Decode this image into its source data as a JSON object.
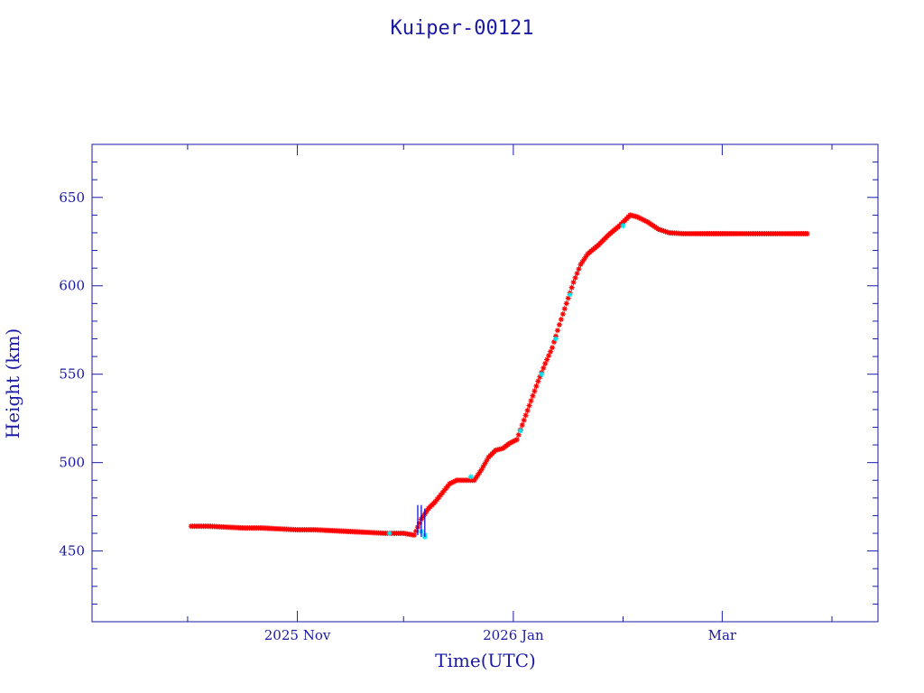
{
  "chart_data": {
    "type": "scatter",
    "title": "Kuiper-00121",
    "xlabel": "Time(UTC)",
    "ylabel": "Height (km)",
    "x_ticks": [
      {
        "date": "2025-11-01",
        "label": "2025 Nov"
      },
      {
        "date": "2026-01-01",
        "label": "2026 Jan"
      },
      {
        "date": "2026-03-01",
        "label": "Mar"
      }
    ],
    "x_minor_ticks": [
      "2025-10-01",
      "2025-12-01",
      "2026-02-01",
      "2026-04-01"
    ],
    "xlim": [
      "2025-09-04",
      "2026-04-14"
    ],
    "ylim": [
      410,
      680
    ],
    "y_ticks": [
      450,
      500,
      550,
      600,
      650
    ],
    "grid": false,
    "colors": {
      "frame": "#1a1aa6",
      "main_series": "#ff0000",
      "secondary_series": "#00e5ee",
      "spike_lines": "#0000cc"
    },
    "series": [
      {
        "color": "#ff0000",
        "marker": "asterisk",
        "points": [
          [
            "2025-10-02",
            464
          ],
          [
            "2025-10-07",
            464
          ],
          [
            "2025-10-12",
            463.5
          ],
          [
            "2025-10-17",
            463
          ],
          [
            "2025-10-22",
            463
          ],
          [
            "2025-10-27",
            462.5
          ],
          [
            "2025-11-01",
            462
          ],
          [
            "2025-11-06",
            462
          ],
          [
            "2025-11-11",
            461.5
          ],
          [
            "2025-11-16",
            461
          ],
          [
            "2025-11-21",
            460.5
          ],
          [
            "2025-11-26",
            460
          ],
          [
            "2025-12-01",
            460
          ],
          [
            "2025-12-04",
            459
          ],
          [
            "2025-12-06",
            468
          ],
          [
            "2025-12-08",
            474
          ],
          [
            "2025-12-10",
            478
          ],
          [
            "2025-12-12",
            483
          ],
          [
            "2025-12-14",
            488
          ],
          [
            "2025-12-16",
            490
          ],
          [
            "2025-12-19",
            490
          ],
          [
            "2025-12-21",
            490
          ],
          [
            "2025-12-23",
            496
          ],
          [
            "2025-12-25",
            503
          ],
          [
            "2025-12-27",
            507
          ],
          [
            "2025-12-29",
            508
          ],
          [
            "2025-12-31",
            511
          ],
          [
            "2026-01-02",
            513
          ],
          [
            "2026-01-04",
            524
          ],
          [
            "2026-01-06",
            535
          ],
          [
            "2026-01-08",
            546
          ],
          [
            "2026-01-10",
            556
          ],
          [
            "2026-01-12",
            565
          ],
          [
            "2026-01-14",
            578
          ],
          [
            "2026-01-16",
            590
          ],
          [
            "2026-01-18",
            602
          ],
          [
            "2026-01-20",
            612
          ],
          [
            "2026-01-22",
            618
          ],
          [
            "2026-01-25",
            623
          ],
          [
            "2026-01-28",
            629
          ],
          [
            "2026-01-31",
            634
          ],
          [
            "2026-02-02",
            638
          ],
          [
            "2026-02-03",
            640
          ],
          [
            "2026-02-05",
            639
          ],
          [
            "2026-02-08",
            636
          ],
          [
            "2026-02-11",
            632
          ],
          [
            "2026-02-14",
            630
          ],
          [
            "2026-02-18",
            629.5
          ],
          [
            "2026-02-23",
            629.5
          ],
          [
            "2026-02-28",
            629.5
          ],
          [
            "2026-03-05",
            629.5
          ],
          [
            "2026-03-10",
            629.5
          ],
          [
            "2026-03-15",
            629.5
          ],
          [
            "2026-03-20",
            629.5
          ],
          [
            "2026-03-25",
            629.5
          ],
          [
            "2026-02-27",
            629.5
          ]
        ]
      },
      {
        "color": "#00e5ee",
        "marker": "asterisk",
        "points": [
          [
            "2025-11-27",
            460
          ],
          [
            "2025-12-06",
            461
          ],
          [
            "2025-12-07",
            459
          ],
          [
            "2025-12-07",
            458
          ],
          [
            "2025-12-20",
            492
          ],
          [
            "2026-01-03",
            518
          ],
          [
            "2026-01-09",
            550
          ],
          [
            "2026-01-13",
            570
          ],
          [
            "2026-01-17",
            595
          ],
          [
            "2026-02-01",
            634
          ]
        ]
      },
      {
        "color": "#0000cc",
        "marker": "line",
        "points": [
          [
            "2025-12-05",
            459
          ],
          [
            "2025-12-05",
            476
          ],
          [
            "2025-12-06",
            458
          ],
          [
            "2025-12-06",
            476
          ],
          [
            "2025-12-07",
            458
          ],
          [
            "2025-12-07",
            474
          ]
        ]
      }
    ]
  }
}
